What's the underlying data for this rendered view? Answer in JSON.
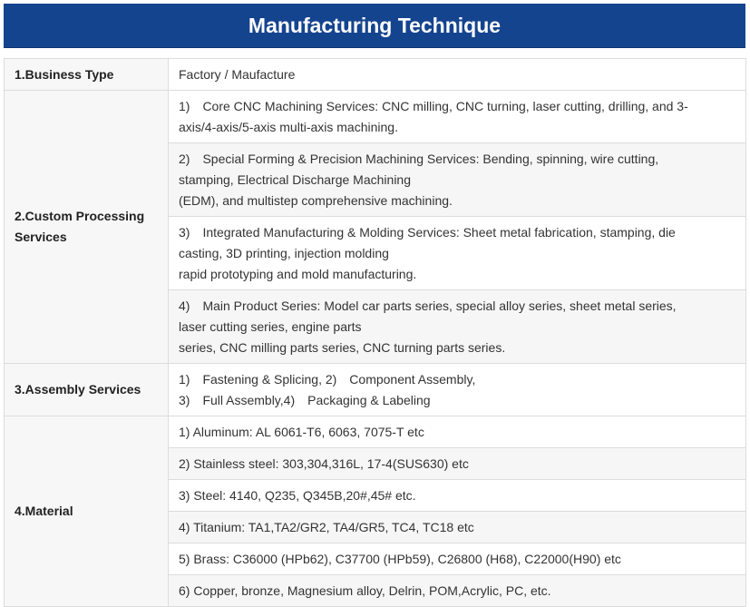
{
  "title": "Manufacturing Technique",
  "rows": {
    "business_type": {
      "label": "1.Business Type",
      "value": "Factory / Maufacture"
    },
    "custom_processing": {
      "label_line1": "2.Custom Processing",
      "label_line2": "Services",
      "items": [
        {
          "lines": [
            "1)　Core CNC Machining Services: CNC milling, CNC turning, laser cutting, drilling, and 3-",
            "axis/4-axis/5-axis multi-axis machining."
          ]
        },
        {
          "lines": [
            "2)　Special Forming & Precision Machining Services: Bending, spinning, wire cutting,",
            "stamping, Electrical Discharge Machining",
            "(EDM), and multistep comprehensive machining."
          ]
        },
        {
          "lines": [
            "3)　Integrated Manufacturing & Molding Services: Sheet metal fabrication, stamping, die",
            "casting, 3D printing, injection molding",
            "rapid prototyping and mold manufacturing."
          ]
        },
        {
          "lines": [
            "4)　Main Product Series: Model car parts series, special alloy series, sheet metal series,",
            "laser cutting series, engine parts",
            "series, CNC milling parts series, CNC turning parts series."
          ]
        }
      ]
    },
    "assembly": {
      "label": "3.Assembly Services",
      "lines": [
        "1)　Fastening & Splicing, 2)　Component Assembly,",
        "3)　Full Assembly,4)　Packaging & Labeling"
      ]
    },
    "material": {
      "label": "4.Material",
      "items": [
        "1) Aluminum: AL 6061-T6, 6063, 7075-T etc",
        "2) Stainless steel: 303,304,316L, 17-4(SUS630) etc",
        "3) Steel: 4140, Q235, Q345B,20#,45# etc.",
        "4) Titanium: TA1,TA2/GR2, TA4/GR5, TC4, TC18 etc",
        "5) Brass: C36000 (HPb62), C37700 (HPb59), C26800 (H68), C22000(H90) etc",
        "6) Copper, bronze, Magnesium alloy, Delrin, POM,Acrylic, PC, etc."
      ]
    }
  }
}
